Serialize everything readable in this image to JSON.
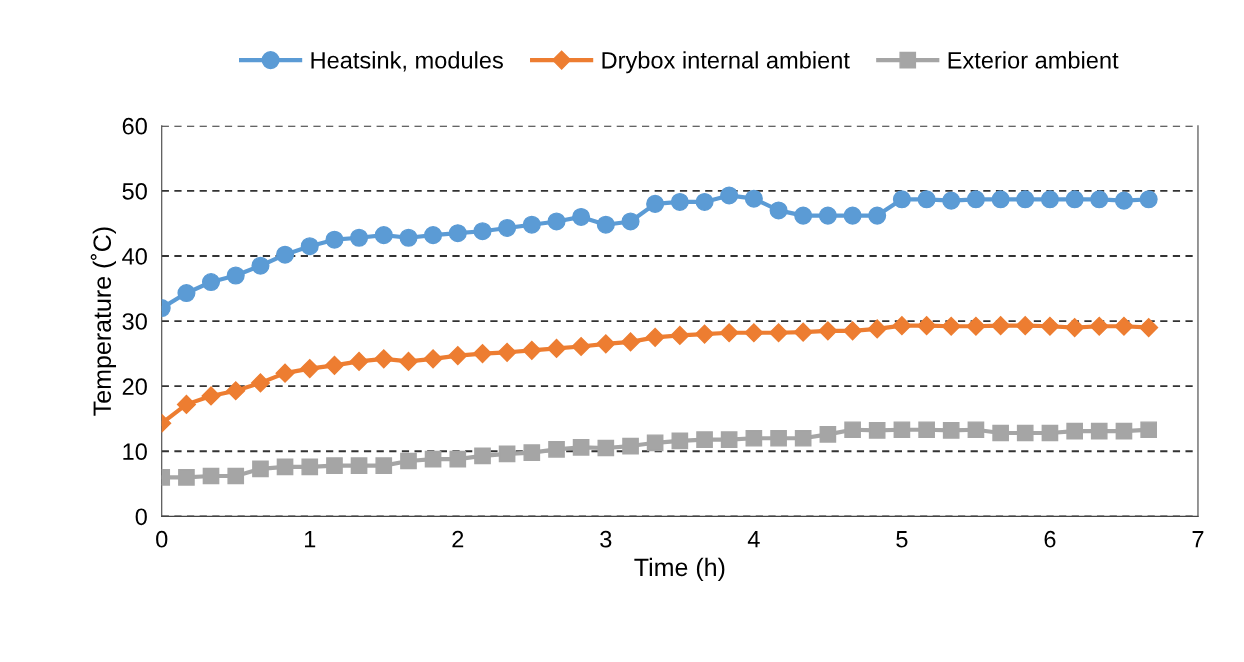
{
  "chart_data": {
    "type": "line",
    "xlabel": "Time (h)",
    "ylabel": "Temperature (˚C)",
    "x": [
      0,
      0.167,
      0.333,
      0.5,
      0.667,
      0.833,
      1,
      1.167,
      1.333,
      1.5,
      1.667,
      1.833,
      2,
      2.167,
      2.333,
      2.5,
      2.667,
      2.833,
      3,
      3.167,
      3.333,
      3.5,
      3.667,
      3.833,
      4,
      4.167,
      4.333,
      4.5,
      4.667,
      4.833,
      5,
      5.167,
      5.333,
      5.5,
      5.667,
      5.833,
      6,
      6.167,
      6.333,
      6.5,
      6.667
    ],
    "series": [
      {
        "name": "Heatsink, modules",
        "color": "#5b9bd5",
        "marker": "circle",
        "values": [
          32,
          34.3,
          36,
          37,
          38.5,
          40.2,
          41.5,
          42.5,
          42.8,
          43.2,
          42.8,
          43.2,
          43.5,
          43.8,
          44.3,
          44.8,
          45.3,
          46,
          44.8,
          45.3,
          48,
          48.3,
          48.3,
          49.3,
          48.8,
          47,
          46.2,
          46.2,
          46.2,
          46.2,
          48.7,
          48.7,
          48.5,
          48.7,
          48.7,
          48.7,
          48.7,
          48.7,
          48.7,
          48.5,
          48.7
        ]
      },
      {
        "name": "Drybox internal ambient",
        "color": "#ed7d31",
        "marker": "diamond",
        "values": [
          14.3,
          17.2,
          18.5,
          19.3,
          20.5,
          22,
          22.7,
          23.2,
          23.8,
          24.2,
          23.8,
          24.2,
          24.7,
          25,
          25.2,
          25.5,
          25.8,
          26.1,
          26.5,
          26.8,
          27.5,
          27.8,
          28,
          28.2,
          28.2,
          28.2,
          28.3,
          28.5,
          28.5,
          28.8,
          29.3,
          29.3,
          29.2,
          29.2,
          29.3,
          29.3,
          29.2,
          29,
          29.2,
          29.2,
          29
        ]
      },
      {
        "name": "Exterior ambient",
        "color": "#a5a5a5",
        "marker": "square",
        "values": [
          6,
          6,
          6.2,
          6.2,
          7.3,
          7.6,
          7.6,
          7.8,
          7.8,
          7.8,
          8.5,
          8.8,
          8.8,
          9.3,
          9.6,
          9.8,
          10.3,
          10.6,
          10.5,
          10.8,
          11.3,
          11.6,
          11.8,
          11.8,
          12,
          12,
          12,
          12.6,
          13.3,
          13.2,
          13.3,
          13.3,
          13.2,
          13.3,
          12.8,
          12.8,
          12.8,
          13.1,
          13.1,
          13.1,
          13.3
        ]
      }
    ],
    "xlim": [
      0,
      7
    ],
    "xticks": [
      0,
      1,
      2,
      3,
      4,
      5,
      6,
      7
    ],
    "ylim": [
      0,
      60
    ],
    "yticks": [
      0,
      10,
      20,
      30,
      40,
      50,
      60
    ],
    "grid": "y",
    "legend": "top",
    "line_style": "solid"
  }
}
